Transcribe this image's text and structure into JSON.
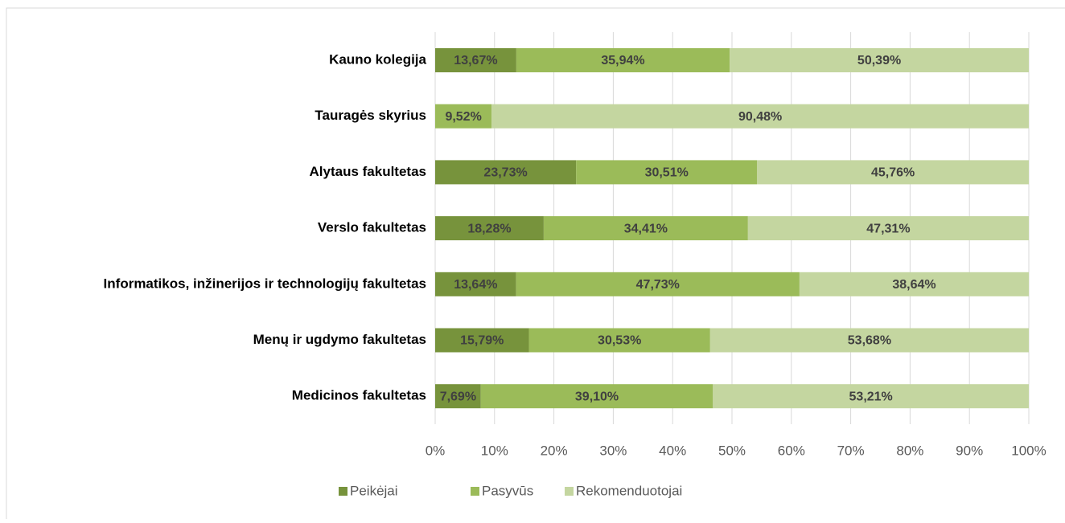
{
  "chart_data": {
    "type": "stacked-bar-horizontal",
    "categories": [
      "Kauno kolegija",
      "Tauragės skyrius",
      "Alytaus fakultetas",
      "Verslo fakultetas",
      "Informatikos, inžinerijos ir technologijų fakultetas",
      "Menų ir ugdymo fakultetas",
      "Medicinos fakultetas"
    ],
    "series": [
      {
        "name": "Peikėjai",
        "color": "#77933c",
        "values": [
          13.67,
          null,
          23.73,
          18.28,
          13.64,
          15.79,
          7.69
        ],
        "value_labels": [
          "13,67%",
          null,
          "23,73%",
          "18,28%",
          "13,64%",
          "15,79%",
          "7,69%"
        ]
      },
      {
        "name": "Pasyvūs",
        "color": "#9bbb59",
        "values": [
          35.94,
          9.52,
          30.51,
          34.41,
          47.73,
          30.53,
          39.1
        ],
        "value_labels": [
          "35,94%",
          "9,52%",
          "30,51%",
          "34,41%",
          "47,73%",
          "30,53%",
          "39,10%"
        ]
      },
      {
        "name": "Rekomenduotojai",
        "color": "#c4d6a0",
        "values": [
          50.39,
          90.48,
          45.76,
          47.31,
          38.64,
          53.68,
          53.21
        ],
        "value_labels": [
          "50,39%",
          "90,48%",
          "45,76%",
          "47,31%",
          "38,64%",
          "53,68%",
          "53,21%"
        ]
      }
    ],
    "xlim": [
      0,
      100
    ],
    "xticks": [
      {
        "value": 0,
        "label": "0%"
      },
      {
        "value": 10,
        "label": "10%"
      },
      {
        "value": 20,
        "label": "20%"
      },
      {
        "value": 30,
        "label": "30%"
      },
      {
        "value": 40,
        "label": "40%"
      },
      {
        "value": 50,
        "label": "50%"
      },
      {
        "value": 60,
        "label": "60%"
      },
      {
        "value": 70,
        "label": "70%"
      },
      {
        "value": 80,
        "label": "80%"
      },
      {
        "value": 90,
        "label": "90%"
      },
      {
        "value": 100,
        "label": "100%"
      }
    ],
    "grid": true,
    "legend": "bottom"
  }
}
